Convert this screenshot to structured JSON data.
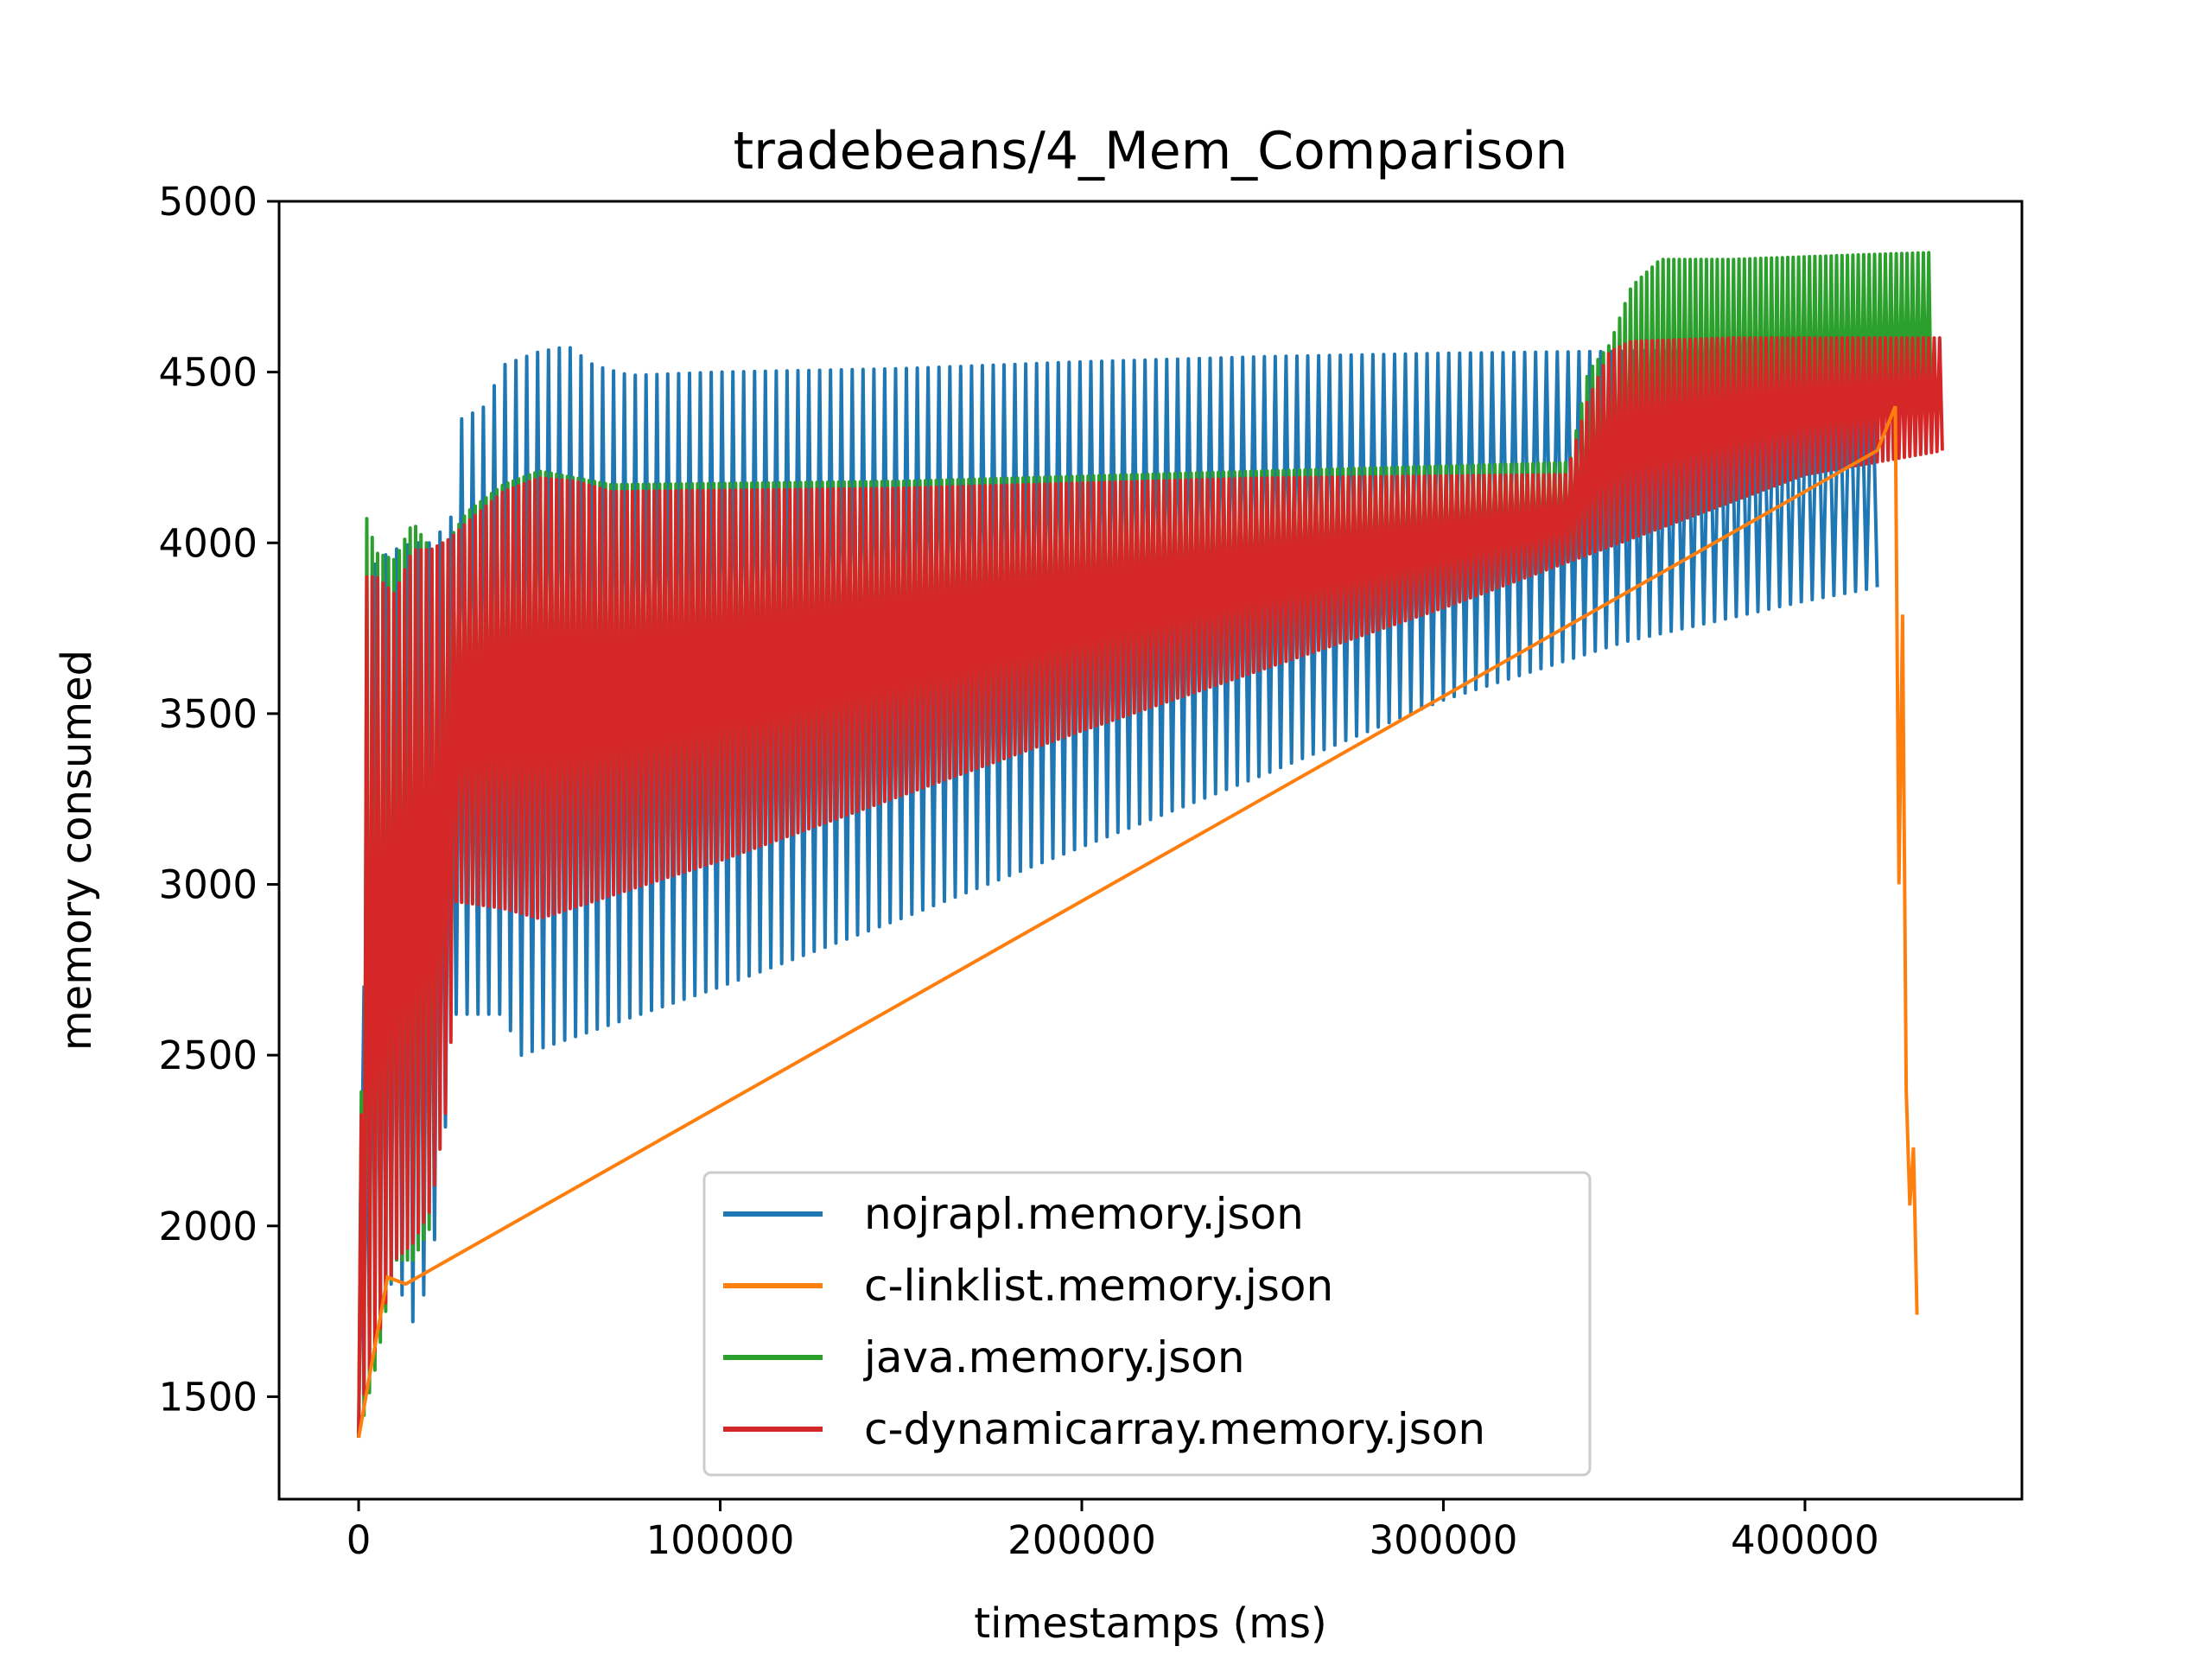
{
  "chart_data": {
    "type": "line",
    "title": "tradebeans/4_Mem_Comparison",
    "xlabel": "timestamps (ms)",
    "ylabel": "memory consumed",
    "xlim": [
      -22000,
      460000
    ],
    "ylim": [
      1200,
      5000
    ],
    "xticks": [
      0,
      100000,
      200000,
      300000,
      400000
    ],
    "yticks": [
      1500,
      2000,
      2500,
      3000,
      3500,
      4000,
      4500,
      5000
    ],
    "xtick_labels": [
      "0",
      "100000",
      "200000",
      "300000",
      "400000"
    ],
    "ytick_labels": [
      "1500",
      "2000",
      "2500",
      "3000",
      "3500",
      "4000",
      "4500",
      "5000"
    ],
    "grid": false,
    "legend_position": "lower center",
    "series": [
      {
        "name": "nojrapl.memory.json",
        "color": "#1f77b4",
        "envelope_upper": [
          [
            0,
            1380
          ],
          [
            1000,
            2300
          ],
          [
            3000,
            3900
          ],
          [
            5000,
            3950
          ],
          [
            10000,
            3980
          ],
          [
            15000,
            4000
          ],
          [
            20000,
            4000
          ],
          [
            24000,
            4050
          ],
          [
            27000,
            4100
          ],
          [
            28000,
            4360
          ],
          [
            35000,
            4400
          ],
          [
            40000,
            4520
          ],
          [
            50000,
            4560
          ],
          [
            58000,
            4575
          ],
          [
            65000,
            4520
          ],
          [
            75000,
            4490
          ],
          [
            100000,
            4500
          ],
          [
            150000,
            4510
          ],
          [
            200000,
            4530
          ],
          [
            250000,
            4545
          ],
          [
            300000,
            4555
          ],
          [
            340000,
            4560
          ],
          [
            345000,
            4560
          ],
          [
            400000,
            4570
          ],
          [
            420000,
            4580
          ]
        ],
        "envelope_lower": [
          [
            0,
            1380
          ],
          [
            2000,
            1700
          ],
          [
            5000,
            1750
          ],
          [
            10000,
            1850
          ],
          [
            15000,
            1720
          ],
          [
            20000,
            1850
          ],
          [
            25000,
            2400
          ],
          [
            27000,
            2620
          ],
          [
            40000,
            2620
          ],
          [
            45000,
            2500
          ],
          [
            100000,
            2700
          ],
          [
            150000,
            2900
          ],
          [
            200000,
            3110
          ],
          [
            250000,
            3320
          ],
          [
            300000,
            3540
          ],
          [
            350000,
            3710
          ],
          [
            400000,
            3830
          ],
          [
            420000,
            3870
          ]
        ]
      },
      {
        "name": "c-linklist.memory.json",
        "color": "#ff7f0e",
        "points": [
          [
            0,
            1380
          ],
          [
            3000,
            1560
          ],
          [
            8000,
            1850
          ],
          [
            13000,
            1830
          ],
          [
            420000,
            4270
          ],
          [
            425000,
            4400
          ],
          [
            426000,
            3000
          ],
          [
            427000,
            3790
          ],
          [
            428000,
            2400
          ],
          [
            429000,
            2060
          ],
          [
            430000,
            2230
          ],
          [
            431000,
            1740
          ]
        ]
      },
      {
        "name": "java.memory.json",
        "color": "#2ca02c",
        "envelope_upper": [
          [
            0,
            1380
          ],
          [
            2000,
            4080
          ],
          [
            5000,
            3970
          ],
          [
            10000,
            3950
          ],
          [
            15000,
            4060
          ],
          [
            20000,
            3980
          ],
          [
            25000,
            4010
          ],
          [
            30000,
            4090
          ],
          [
            40000,
            4170
          ],
          [
            50000,
            4210
          ],
          [
            60000,
            4190
          ],
          [
            70000,
            4170
          ],
          [
            150000,
            4180
          ],
          [
            250000,
            4210
          ],
          [
            335000,
            4235
          ],
          [
            340000,
            4500
          ],
          [
            346000,
            4580
          ],
          [
            352000,
            4750
          ],
          [
            360000,
            4830
          ],
          [
            380000,
            4830
          ],
          [
            420000,
            4845
          ],
          [
            435000,
            4850
          ]
        ],
        "envelope_lower": [
          [
            0,
            1380
          ],
          [
            5000,
            1600
          ],
          [
            10000,
            1900
          ],
          [
            15000,
            1900
          ],
          [
            20000,
            2000
          ],
          [
            27000,
            2950
          ],
          [
            50000,
            2920
          ],
          [
            100000,
            3070
          ],
          [
            200000,
            3450
          ],
          [
            300000,
            3810
          ],
          [
            400000,
            4200
          ],
          [
            435000,
            4300
          ]
        ]
      },
      {
        "name": "c-dynamicarray.memory.json",
        "color": "#d62728",
        "envelope_upper": [
          [
            0,
            1380
          ],
          [
            2000,
            3900
          ],
          [
            5000,
            3900
          ],
          [
            10000,
            3850
          ],
          [
            15000,
            3980
          ],
          [
            20000,
            3980
          ],
          [
            25000,
            4010
          ],
          [
            30000,
            4060
          ],
          [
            40000,
            4150
          ],
          [
            50000,
            4190
          ],
          [
            60000,
            4180
          ],
          [
            70000,
            4150
          ],
          [
            150000,
            4160
          ],
          [
            250000,
            4190
          ],
          [
            334000,
            4200
          ],
          [
            340000,
            4420
          ],
          [
            346000,
            4560
          ],
          [
            352000,
            4590
          ],
          [
            380000,
            4600
          ],
          [
            420000,
            4600
          ],
          [
            438000,
            4600
          ]
        ],
        "envelope_lower": [
          [
            0,
            1380
          ],
          [
            2000,
            1550
          ],
          [
            5000,
            1650
          ],
          [
            10000,
            1900
          ],
          [
            15000,
            1950
          ],
          [
            20000,
            2050
          ],
          [
            25000,
            2400
          ],
          [
            27000,
            2950
          ],
          [
            40000,
            2930
          ],
          [
            50000,
            2900
          ],
          [
            100000,
            3070
          ],
          [
            200000,
            3450
          ],
          [
            300000,
            3810
          ],
          [
            400000,
            4200
          ],
          [
            438000,
            4270
          ]
        ]
      }
    ]
  }
}
